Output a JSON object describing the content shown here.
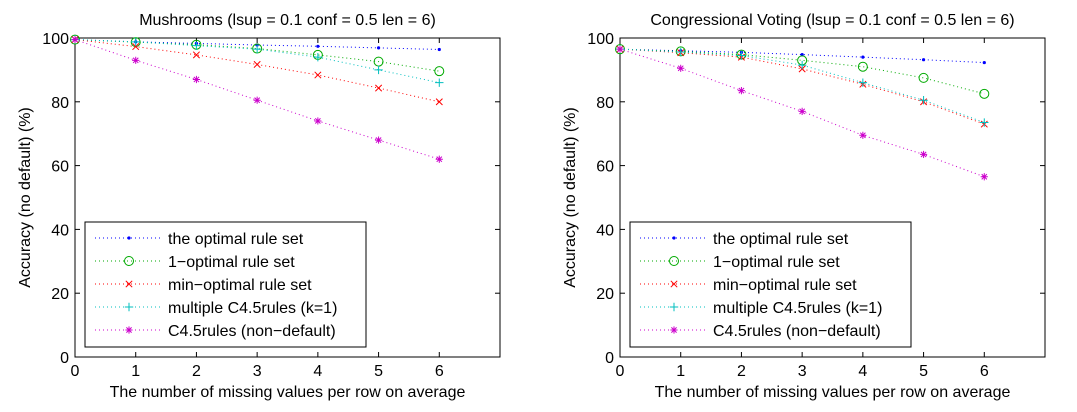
{
  "chart_data": [
    {
      "type": "line",
      "title": "Mushrooms (lsup = 0.1 conf = 0.5 len = 6)",
      "xlabel": "The number of missing values per row on average",
      "ylabel": "Accuracy (no default) (%)",
      "xlim": [
        0,
        7
      ],
      "ylim": [
        0,
        100
      ],
      "xticks": [
        "0",
        "1",
        "2",
        "3",
        "4",
        "5",
        "6"
      ],
      "yticks": [
        "0",
        "20",
        "40",
        "60",
        "80",
        "100"
      ],
      "legend_position": "lower-left",
      "x": [
        0,
        1,
        2,
        3,
        4,
        5,
        6
      ],
      "series": [
        {
          "name": "the optimal rule set",
          "marker": "dot",
          "color": "#0000ff",
          "values": [
            99.5,
            98.8,
            98.3,
            97.8,
            97.4,
            96.9,
            96.4
          ]
        },
        {
          "name": "1−optimal rule set",
          "marker": "circle",
          "color": "#00aa00",
          "values": [
            99.5,
            98.7,
            97.9,
            96.7,
            94.7,
            92.6,
            89.6
          ]
        },
        {
          "name": "min−optimal rule set",
          "marker": "x",
          "color": "#ff0000",
          "values": [
            99.5,
            97.3,
            94.7,
            91.7,
            88.4,
            84.3,
            80.0
          ]
        },
        {
          "name": "multiple C4.5rules (k=1)",
          "marker": "plus",
          "color": "#00bfbf",
          "values": [
            99.5,
            98.8,
            97.6,
            96.5,
            94.0,
            90.0,
            86.0
          ]
        },
        {
          "name": "C4.5rules (non−default)",
          "marker": "star",
          "color": "#cc00cc",
          "values": [
            99.5,
            93.0,
            87.0,
            80.5,
            74.0,
            68.0,
            62.0
          ]
        }
      ]
    },
    {
      "type": "line",
      "title": "Congressional Voting (lsup = 0.1 conf = 0.5 len = 6)",
      "xlabel": "The number of missing values per row on average",
      "ylabel": "Accuracy (no default) (%)",
      "xlim": [
        0,
        7
      ],
      "ylim": [
        0,
        100
      ],
      "xticks": [
        "0",
        "1",
        "2",
        "3",
        "4",
        "5",
        "6"
      ],
      "yticks": [
        "0",
        "20",
        "40",
        "60",
        "80",
        "100"
      ],
      "legend_position": "lower-left",
      "x": [
        0,
        1,
        2,
        3,
        4,
        5,
        6
      ],
      "series": [
        {
          "name": "the optimal rule set",
          "marker": "dot",
          "color": "#0000ff",
          "values": [
            96.5,
            96.0,
            95.5,
            94.8,
            94.0,
            93.2,
            92.3
          ]
        },
        {
          "name": "1−optimal rule set",
          "marker": "circle",
          "color": "#00aa00",
          "values": [
            96.5,
            95.8,
            94.8,
            93.0,
            91.0,
            87.5,
            82.5
          ]
        },
        {
          "name": "min−optimal rule set",
          "marker": "x",
          "color": "#ff0000",
          "values": [
            96.5,
            95.4,
            94.0,
            90.3,
            85.5,
            80.0,
            73.0
          ]
        },
        {
          "name": "multiple C4.5rules (k=1)",
          "marker": "plus",
          "color": "#00bfbf",
          "values": [
            96.5,
            95.6,
            94.5,
            91.5,
            86.0,
            80.5,
            73.5
          ]
        },
        {
          "name": "C4.5rules (non−default)",
          "marker": "star",
          "color": "#cc00cc",
          "values": [
            96.5,
            90.5,
            83.5,
            77.0,
            69.5,
            63.5,
            56.5
          ]
        }
      ]
    }
  ]
}
